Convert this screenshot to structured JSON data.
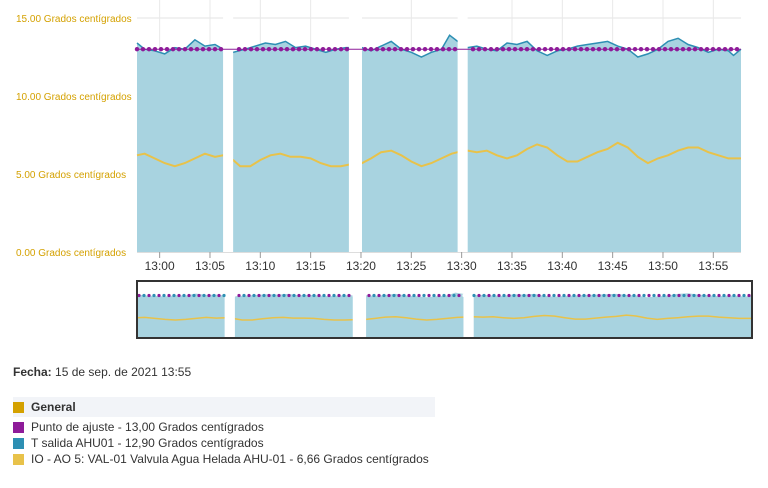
{
  "chart_data": {
    "type": "line",
    "ylim": [
      0,
      15
    ],
    "y_ticks": [
      "0.00 Grados centígrados",
      "5.00 Grados centígrados",
      "10.00 Grados centígrados",
      "15.00 Grados centígrados"
    ],
    "y_tick_values": [
      0,
      5,
      10,
      15
    ],
    "x_range": [
      12.75,
      72.75
    ],
    "x_ticks": [
      "13:00",
      "13:05",
      "13:10",
      "13:15",
      "13:20",
      "13:25",
      "13:30",
      "13:35",
      "13:40",
      "13:45",
      "13:50",
      "13:55"
    ],
    "x_tick_values": [
      15,
      20,
      25,
      30,
      35,
      40,
      45,
      50,
      55,
      60,
      65,
      70
    ],
    "x_unit": "minutes after 12:45",
    "grid": true,
    "gaps": [
      [
        21.3,
        22.3
      ],
      [
        33.8,
        35.1
      ],
      [
        44.6,
        45.6
      ]
    ],
    "series": [
      {
        "name": "Punto de ajuste",
        "color": "#8e1b99",
        "kind": "dotted-line",
        "points": [
          [
            12.75,
            13.0
          ],
          [
            72.75,
            13.0
          ]
        ]
      },
      {
        "name": "T salida AHU01",
        "color": "#2d8fb3",
        "fill": "#a8d3e0",
        "kind": "area",
        "points": [
          [
            12.75,
            13.4
          ],
          [
            13.5,
            13.0
          ],
          [
            14.5,
            12.9
          ],
          [
            15.5,
            12.7
          ],
          [
            16.5,
            13.1
          ],
          [
            17.5,
            13.0
          ],
          [
            18.5,
            13.6
          ],
          [
            19.5,
            13.2
          ],
          [
            20.5,
            13.3
          ],
          [
            21.3,
            13.0
          ],
          [
            22.3,
            12.8
          ],
          [
            23.5,
            13.0
          ],
          [
            24.5,
            13.2
          ],
          [
            25.5,
            13.4
          ],
          [
            26.5,
            13.3
          ],
          [
            27.5,
            13.5
          ],
          [
            28.5,
            13.1
          ],
          [
            29.5,
            13.2
          ],
          [
            30.5,
            13.0
          ],
          [
            31.5,
            12.8
          ],
          [
            32.5,
            13.0
          ],
          [
            33.5,
            13.1
          ],
          [
            33.8,
            13.1
          ],
          [
            35.1,
            13.1
          ],
          [
            36.0,
            12.9
          ],
          [
            37.0,
            13.2
          ],
          [
            38.0,
            13.5
          ],
          [
            39.0,
            13.0
          ],
          [
            40.0,
            12.8
          ],
          [
            41.0,
            12.5
          ],
          [
            42.0,
            12.8
          ],
          [
            43.0,
            13.0
          ],
          [
            43.8,
            13.9
          ],
          [
            44.6,
            13.5
          ],
          [
            45.6,
            13.1
          ],
          [
            46.5,
            13.2
          ],
          [
            47.5,
            13.0
          ],
          [
            48.5,
            12.9
          ],
          [
            49.5,
            13.4
          ],
          [
            50.5,
            13.3
          ],
          [
            51.5,
            13.5
          ],
          [
            52.5,
            12.9
          ],
          [
            53.5,
            12.6
          ],
          [
            54.5,
            12.9
          ],
          [
            55.5,
            13.0
          ],
          [
            56.5,
            13.2
          ],
          [
            57.5,
            13.3
          ],
          [
            58.5,
            13.4
          ],
          [
            59.5,
            13.5
          ],
          [
            60.5,
            13.2
          ],
          [
            61.5,
            13.0
          ],
          [
            62.5,
            12.5
          ],
          [
            63.5,
            12.7
          ],
          [
            64.5,
            13.0
          ],
          [
            65.5,
            13.5
          ],
          [
            66.5,
            13.7
          ],
          [
            67.5,
            13.3
          ],
          [
            68.5,
            13.1
          ],
          [
            69.5,
            12.8
          ],
          [
            70.5,
            13.0
          ],
          [
            71.5,
            12.9
          ],
          [
            72.0,
            12.6
          ],
          [
            72.75,
            13.0
          ]
        ]
      },
      {
        "name": "IO - AO 5: VAL-01 Valvula Agua Helada AHU-01",
        "color": "#e8c24a",
        "kind": "line",
        "points": [
          [
            12.75,
            6.2
          ],
          [
            13.5,
            6.3
          ],
          [
            14.5,
            6.0
          ],
          [
            15.5,
            5.7
          ],
          [
            16.5,
            5.5
          ],
          [
            17.5,
            5.7
          ],
          [
            18.5,
            6.0
          ],
          [
            19.5,
            6.3
          ],
          [
            20.5,
            6.1
          ],
          [
            21.3,
            6.2
          ],
          [
            22.3,
            5.9
          ],
          [
            23.0,
            5.5
          ],
          [
            24.0,
            5.5
          ],
          [
            25.0,
            5.9
          ],
          [
            26.0,
            6.2
          ],
          [
            27.0,
            6.3
          ],
          [
            28.0,
            6.1
          ],
          [
            29.0,
            6.1
          ],
          [
            30.0,
            6.0
          ],
          [
            31.0,
            5.7
          ],
          [
            32.0,
            5.5
          ],
          [
            33.0,
            5.5
          ],
          [
            33.8,
            5.6
          ],
          [
            35.1,
            5.7
          ],
          [
            36.0,
            6.0
          ],
          [
            37.0,
            6.4
          ],
          [
            38.0,
            6.5
          ],
          [
            39.0,
            6.2
          ],
          [
            40.0,
            5.8
          ],
          [
            41.0,
            5.5
          ],
          [
            42.0,
            5.7
          ],
          [
            43.0,
            6.0
          ],
          [
            44.0,
            6.3
          ],
          [
            44.6,
            6.4
          ],
          [
            45.6,
            6.5
          ],
          [
            46.5,
            6.4
          ],
          [
            47.5,
            6.5
          ],
          [
            48.5,
            6.2
          ],
          [
            49.5,
            6.0
          ],
          [
            50.5,
            6.2
          ],
          [
            51.5,
            6.6
          ],
          [
            52.5,
            6.9
          ],
          [
            53.5,
            6.7
          ],
          [
            54.5,
            6.2
          ],
          [
            55.5,
            5.8
          ],
          [
            56.5,
            5.8
          ],
          [
            57.5,
            6.1
          ],
          [
            58.5,
            6.4
          ],
          [
            59.5,
            6.6
          ],
          [
            60.5,
            7.0
          ],
          [
            61.5,
            6.7
          ],
          [
            62.5,
            6.1
          ],
          [
            63.5,
            5.7
          ],
          [
            64.5,
            6.0
          ],
          [
            65.5,
            6.2
          ],
          [
            66.5,
            6.5
          ],
          [
            67.5,
            6.7
          ],
          [
            68.5,
            6.7
          ],
          [
            69.5,
            6.4
          ],
          [
            70.5,
            6.2
          ],
          [
            71.5,
            6.0
          ],
          [
            72.75,
            6.0
          ]
        ]
      }
    ]
  },
  "info": {
    "fecha_label": "Fecha:",
    "fecha_value": "15 de sep. de 2021 13:55"
  },
  "legend": {
    "group": {
      "label": "General",
      "color": "#d4a100"
    },
    "items": [
      {
        "label": "Punto de ajuste - 13,00 Grados centígrados",
        "color": "#8e1b99"
      },
      {
        "label": "T salida AHU01 - 12,90 Grados centígrados",
        "color": "#2d8fb3"
      },
      {
        "label": "IO - AO 5: VAL-01 Valvula Agua Helada AHU-01 - 6,66 Grados centígrados",
        "color": "#e8c24a"
      }
    ]
  }
}
